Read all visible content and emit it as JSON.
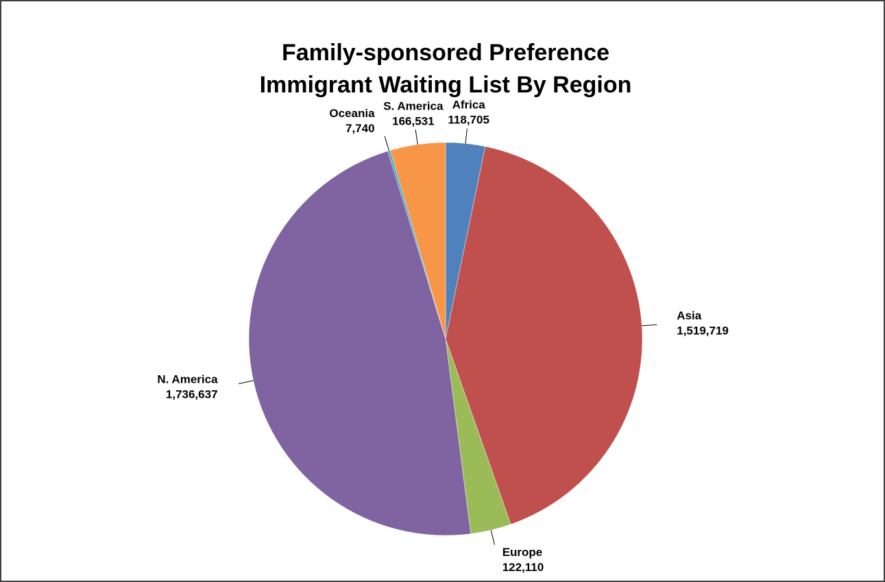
{
  "chart_data": {
    "type": "pie",
    "title": [
      "Family-sponsored Preference",
      "Immigrant Waiting List By Region"
    ],
    "categories": [
      "Africa",
      "Asia",
      "Europe",
      "N. America",
      "Oceania",
      "S. America"
    ],
    "values": [
      118705,
      1519719,
      122110,
      1736637,
      7740,
      166531
    ],
    "value_labels": [
      "118,705",
      "1,519,719",
      "122,110",
      "1,736,637",
      "7,740",
      "166,531"
    ],
    "colors": [
      "#4f81bd",
      "#c0504d",
      "#9bbb59",
      "#8064a2",
      "#4bacc6",
      "#f79646"
    ]
  }
}
